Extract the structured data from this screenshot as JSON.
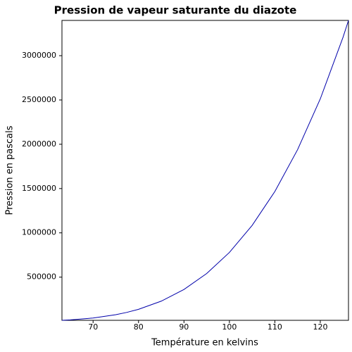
{
  "chart_data": {
    "type": "line",
    "title": "Pression de vapeur saturante du diazote",
    "x_label": "Température en kelvins",
    "y_label": "Pression en pascals",
    "x": [
      63.15,
      65,
      70,
      75,
      77.36,
      80,
      85,
      90,
      95,
      100,
      105,
      110,
      115,
      120,
      125,
      126.2
    ],
    "series": [
      {
        "color": "#0000aa",
        "values": [
          12520,
          17400,
          38500,
          76100,
          101325,
          137000,
          229000,
          360800,
          541100,
          778800,
          1084000,
          1467000,
          1939000,
          2513000,
          3208000,
          3398000
        ]
      }
    ],
    "xlim": [
      63.15,
      126.2
    ],
    "ylim": [
      12520,
      3398000
    ],
    "xticks": [
      70,
      80,
      90,
      100,
      110,
      120
    ],
    "yticks": [
      500000,
      1000000,
      1500000,
      2000000,
      2500000,
      3000000
    ]
  }
}
